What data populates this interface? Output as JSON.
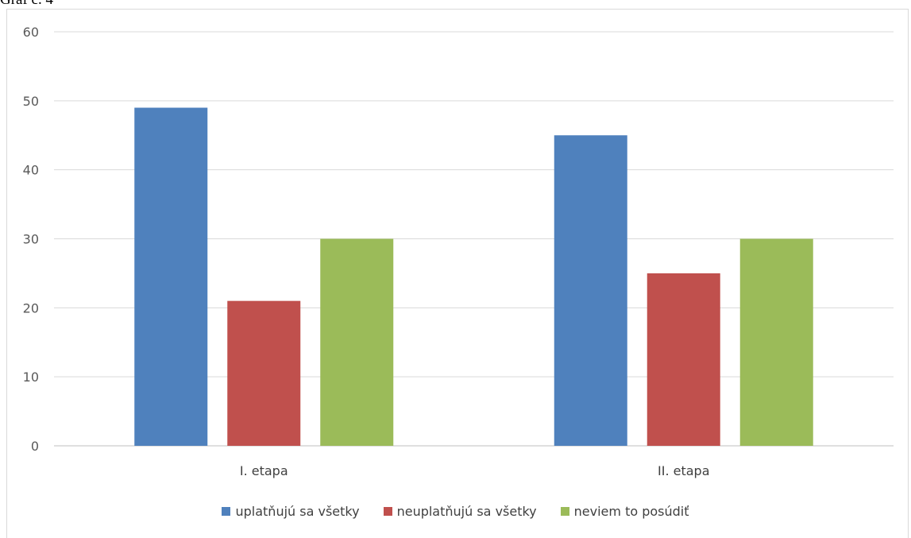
{
  "caption": "Graf č. 4",
  "chart_data": {
    "type": "bar",
    "categories": [
      "I. etapa",
      "II. etapa"
    ],
    "series": [
      {
        "name": "uplatňujú sa všetky",
        "color": "#4f81bd",
        "values": [
          49,
          45
        ]
      },
      {
        "name": "neuplatňujú sa všetky",
        "color": "#c0504d",
        "values": [
          21,
          25
        ]
      },
      {
        "name": "neviem to posúdiť",
        "color": "#9bbb59",
        "values": [
          30,
          30
        ]
      }
    ],
    "ylim": [
      0,
      60
    ],
    "yticks": [
      0,
      10,
      20,
      30,
      40,
      50,
      60
    ],
    "grid": true,
    "legend_position": "bottom"
  }
}
